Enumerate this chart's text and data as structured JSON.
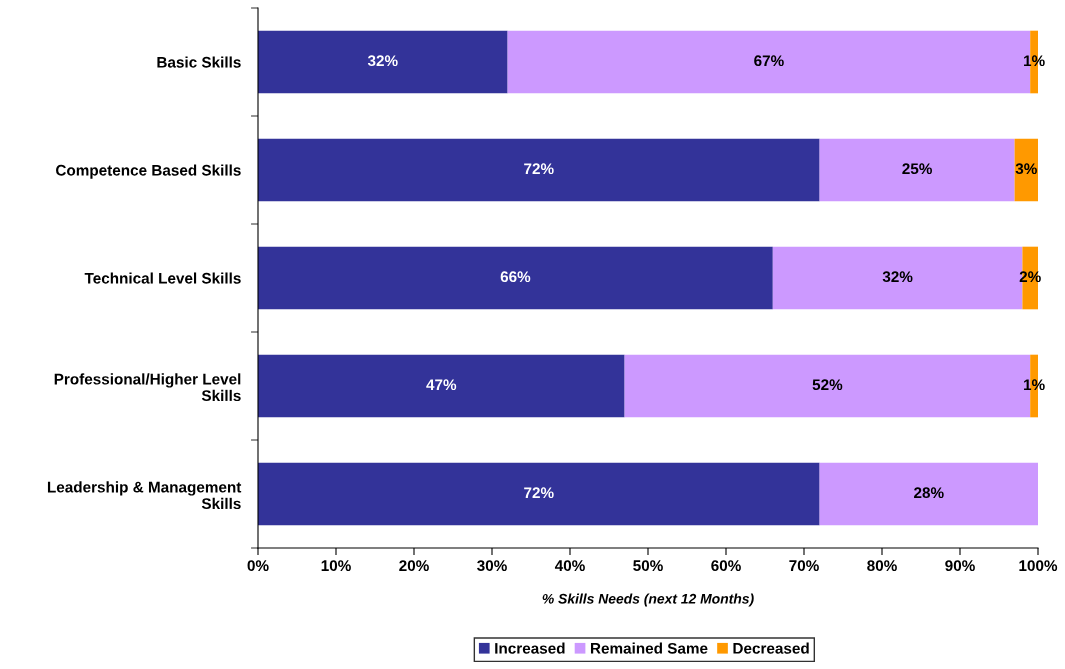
{
  "chart_data": {
    "type": "bar",
    "orientation": "horizontal",
    "stacked": true,
    "xlabel": "% Skills Needs (next 12 Months)",
    "categories": [
      "Basic Skills",
      "Competence Based Skills",
      "Technical Level Skills",
      "Professional/Higher Level\nSkills",
      "Leadership & Management\nSkills"
    ],
    "series": [
      {
        "name": "Increased",
        "color": "#333399",
        "values": [
          32,
          72,
          66,
          47,
          72
        ],
        "value_labels": [
          "32%",
          "72%",
          "66%",
          "47%",
          "72%"
        ]
      },
      {
        "name": "Remained Same",
        "color": "#cc99ff",
        "values": [
          67,
          25,
          32,
          52,
          28
        ],
        "value_labels": [
          "67%",
          "25%",
          "32%",
          "52%",
          "28%"
        ]
      },
      {
        "name": "Decreased",
        "color": "#ff9900",
        "values": [
          1,
          3,
          2,
          1,
          null
        ],
        "value_labels": [
          "1%",
          "3%",
          "2%",
          "1%",
          null
        ]
      }
    ],
    "xlim": [
      0,
      100
    ],
    "xticks": [
      {
        "value": 0,
        "label": "0%"
      },
      {
        "value": 10,
        "label": "10%"
      },
      {
        "value": 20,
        "label": "20%"
      },
      {
        "value": 30,
        "label": "30%"
      },
      {
        "value": 40,
        "label": "40%"
      },
      {
        "value": 50,
        "label": "50%"
      },
      {
        "value": 60,
        "label": "60%"
      },
      {
        "value": 70,
        "label": "70%"
      },
      {
        "value": 80,
        "label": "80%"
      },
      {
        "value": 90,
        "label": "90%"
      },
      {
        "value": 100,
        "label": "100%"
      }
    ],
    "grid": false,
    "legend": "bottom"
  }
}
